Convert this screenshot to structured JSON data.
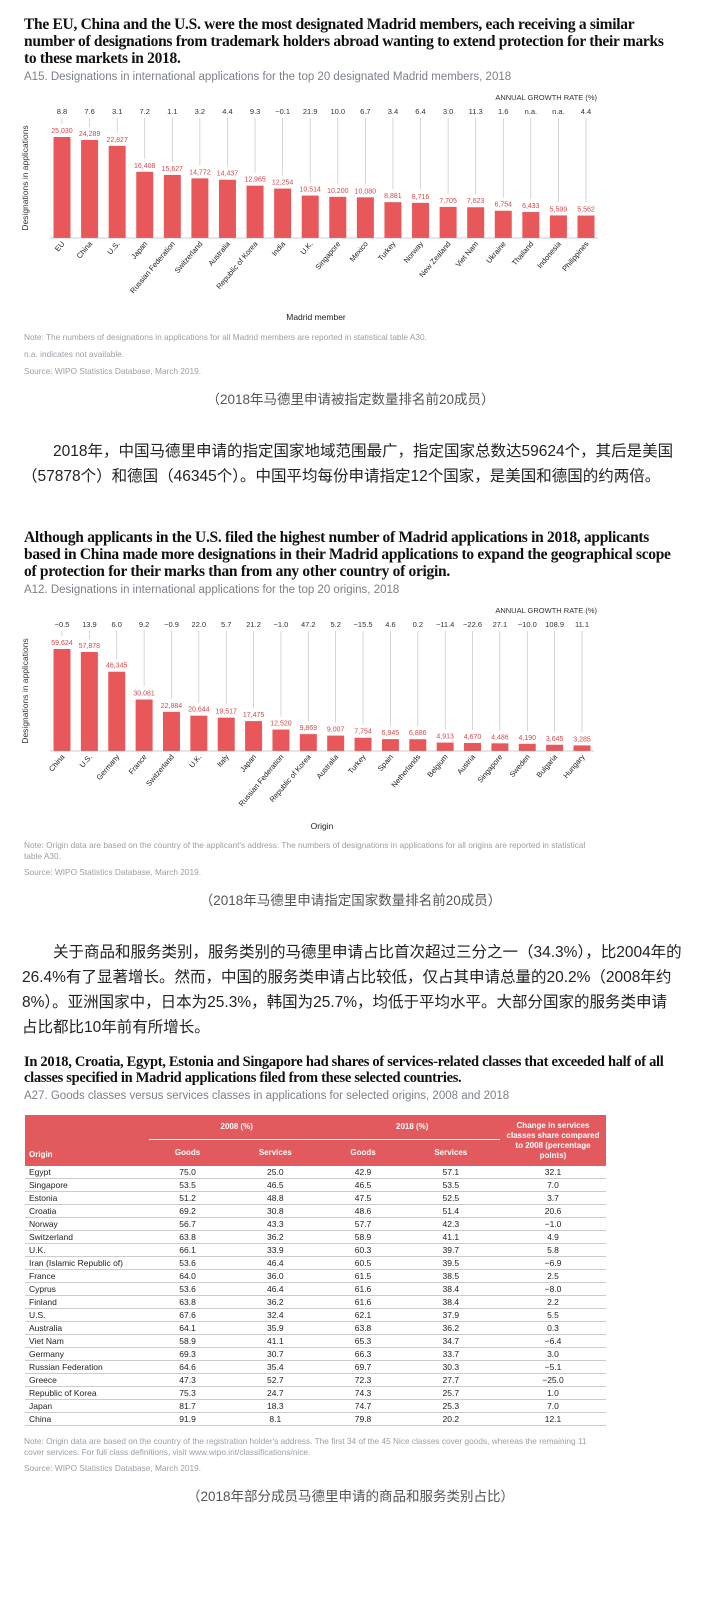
{
  "chart_data": [
    {
      "type": "bar",
      "title": "The EU, China and the U.S. were the most designated Madrid members, each receiving a similar number of designations from trademark holders abroad wanting to extend protection for their marks to these markets in 2018.",
      "subtitle": "A15. Designations in international applications for the top 20 designated Madrid members, 2018",
      "xlabel": "Madrid member",
      "ylabel": "Designations in applications",
      "growth_label": "ANNUAL GROWTH RATE (%)",
      "categories": [
        "EU",
        "China",
        "U.S.",
        "Japan",
        "Russian Federation",
        "Switzerland",
        "Australia",
        "Republic of Korea",
        "India",
        "U.K.",
        "Singapore",
        "Mexico",
        "Turkey",
        "Norway",
        "New Zealand",
        "Viet Nam",
        "Ukraine",
        "Thailand",
        "Indonesia",
        "Philippines"
      ],
      "values": [
        25030,
        24289,
        22827,
        16408,
        15627,
        14772,
        14437,
        12965,
        12254,
        10514,
        10200,
        10080,
        8881,
        8716,
        7705,
        7623,
        6754,
        6433,
        5599,
        5562
      ],
      "value_labels": [
        "25,030",
        "24,289",
        "22,827",
        "16,408",
        "15,627",
        "14,772",
        "14,437",
        "12,965",
        "12,254",
        "10,514",
        "10,200",
        "10,080",
        "8,881",
        "8,716",
        "7,705",
        "7,623",
        "6,754",
        "6,433",
        "5,599",
        "5,562"
      ],
      "growth": [
        "8.8",
        "7.6",
        "3.1",
        "7.2",
        "1.1",
        "3.2",
        "4.4",
        "9.3",
        "−0.1",
        "21.9",
        "10.0",
        "6.7",
        "3.4",
        "6.4",
        "3.0",
        "11.3",
        "1.6",
        "n.a.",
        "n.a.",
        "4.4"
      ],
      "notes": [
        "Note: The numbers of designations in applications for all Madrid members are reported in statistical table A30.",
        "n.a. indicates not available.",
        "Source: WIPO Statistics Database, March 2019."
      ],
      "bar_color": "#e8585b"
    },
    {
      "type": "bar",
      "title": "Although applicants in the U.S. filed the highest number of Madrid applications in 2018, applicants based in China made more designations in their Madrid applications to expand the geographical scope of protection for their marks than from any other country of origin.",
      "subtitle": "A12. Designations in international applications for the top 20 origins, 2018",
      "xlabel": "Origin",
      "ylabel": "Designations in applications",
      "growth_label": "ANNUAL GROWTH RATE (%)",
      "categories": [
        "China",
        "U.S.",
        "Germany",
        "France",
        "Switzerland",
        "U.K.",
        "Italy",
        "Japan",
        "Russian Federation",
        "Republic of Korea",
        "Australia",
        "Turkey",
        "Spain",
        "Netherlands",
        "Belgium",
        "Austria",
        "Singapore",
        "Sweden",
        "Bulgaria",
        "Hungary"
      ],
      "values": [
        59624,
        57878,
        46345,
        30081,
        22884,
        20644,
        19517,
        17475,
        12520,
        9869,
        9007,
        7754,
        6945,
        6886,
        4913,
        4670,
        4486,
        4190,
        3645,
        3285
      ],
      "value_labels": [
        "59,624",
        "57,878",
        "46,345",
        "30,081",
        "22,884",
        "20,644",
        "19,517",
        "17,475",
        "12,520",
        "9,869",
        "9,007",
        "7,754",
        "6,945",
        "6,886",
        "4,913",
        "4,670",
        "4,486",
        "4,190",
        "3,645",
        "3,285"
      ],
      "growth": [
        "−0.5",
        "13.9",
        "6.0",
        "9.2",
        "−0.9",
        "22.0",
        "5.7",
        "21.2",
        "−1.0",
        "47.2",
        "5.2",
        "−15.5",
        "4.6",
        "0.2",
        "−11.4",
        "−22.6",
        "27.1",
        "−10.0",
        "108.9",
        "11.1"
      ],
      "notes": [
        "Note: Origin data are based on the country of the applicant's address. The numbers of designations in applications for all origins are reported in statistical table A30.",
        "Source: WIPO Statistics Database, March 2019."
      ],
      "bar_color": "#e8585b"
    },
    {
      "type": "table",
      "title": "In 2018, Croatia, Egypt, Estonia and Singapore had shares of services-related classes that exceeded half of all classes specified in Madrid applications filed from these selected countries.",
      "subtitle": "A27. Goods classes versus services classes in applications for selected origins, 2008 and 2018",
      "group_headers": [
        "2008 (%)",
        "2018 (%)"
      ],
      "columns": [
        "Origin",
        "Goods",
        "Services",
        "Goods",
        "Services",
        "Change in services classes share compared to 2008 (percentage points)"
      ],
      "rows": [
        [
          "Egypt",
          "75.0",
          "25.0",
          "42.9",
          "57.1",
          "32.1"
        ],
        [
          "Singapore",
          "53.5",
          "46.5",
          "46.5",
          "53.5",
          "7.0"
        ],
        [
          "Estonia",
          "51.2",
          "48.8",
          "47.5",
          "52.5",
          "3.7"
        ],
        [
          "Croatia",
          "69.2",
          "30.8",
          "48.6",
          "51.4",
          "20.6"
        ],
        [
          "Norway",
          "56.7",
          "43.3",
          "57.7",
          "42.3",
          "−1.0"
        ],
        [
          "Switzerland",
          "63.8",
          "36.2",
          "58.9",
          "41.1",
          "4.9"
        ],
        [
          "U.K.",
          "66.1",
          "33.9",
          "60.3",
          "39.7",
          "5.8"
        ],
        [
          "Iran (Islamic Republic of)",
          "53.6",
          "46.4",
          "60.5",
          "39.5",
          "−6.9"
        ],
        [
          "France",
          "64.0",
          "36.0",
          "61.5",
          "38.5",
          "2.5"
        ],
        [
          "Cyprus",
          "53.6",
          "46.4",
          "61.6",
          "38.4",
          "−8.0"
        ],
        [
          "Finland",
          "63.8",
          "36.2",
          "61.6",
          "38.4",
          "2.2"
        ],
        [
          "U.S.",
          "67.6",
          "32.4",
          "62.1",
          "37.9",
          "5.5"
        ],
        [
          "Australia",
          "64.1",
          "35.9",
          "63.8",
          "36.2",
          "0.3"
        ],
        [
          "Viet Nam",
          "58.9",
          "41.1",
          "65.3",
          "34.7",
          "−6.4"
        ],
        [
          "Germany",
          "69.3",
          "30.7",
          "66.3",
          "33.7",
          "3.0"
        ],
        [
          "Russian Federation",
          "64.6",
          "35.4",
          "69.7",
          "30.3",
          "−5.1"
        ],
        [
          "Greece",
          "47.3",
          "52.7",
          "72.3",
          "27.7",
          "−25.0"
        ],
        [
          "Republic of Korea",
          "75.3",
          "24.7",
          "74.3",
          "25.7",
          "1.0"
        ],
        [
          "Japan",
          "81.7",
          "18.3",
          "74.7",
          "25.3",
          "7.0"
        ],
        [
          "China",
          "91.9",
          "8.1",
          "79.8",
          "20.2",
          "12.1"
        ]
      ],
      "notes": [
        "Note: Origin data are based on the country of the registration holder's address. The first 34 of the 45 Nice classes cover goods, whereas the remaining 11 cover services. For full class definitions, visit www.wipo.int/classifications/nice.",
        "Source: WIPO Statistics Database, March 2019."
      ],
      "header_color": "#e25a5e"
    }
  ],
  "captions": [
    "（2018年马德里申请被指定数量排名前20成员）",
    "（2018年马德里申请指定国家数量排名前20成员）",
    "（2018年部分成员马德里申请的商品和服务类别占比）"
  ],
  "paragraphs": [
    "2018年，中国马德里申请的指定国家地域范围最广，指定国家总数达59624个，其后是美国（57878个）和德国（46345个）。中国平均每份申请指定12个国家，是美国和德国的约两倍。",
    "关于商品和服务类别，服务类别的马德里申请占比首次超过三分之一（34.3%），比2004年的26.4%有了显著增长。然而，中国的服务类申请占比较低，仅占其申请总量的20.2%（2008年约8%）。亚洲国家中，日本为25.3%，韩国为25.7%，均低于平均水平。大部分国家的服务类申请占比都比10年前有所增长。"
  ]
}
